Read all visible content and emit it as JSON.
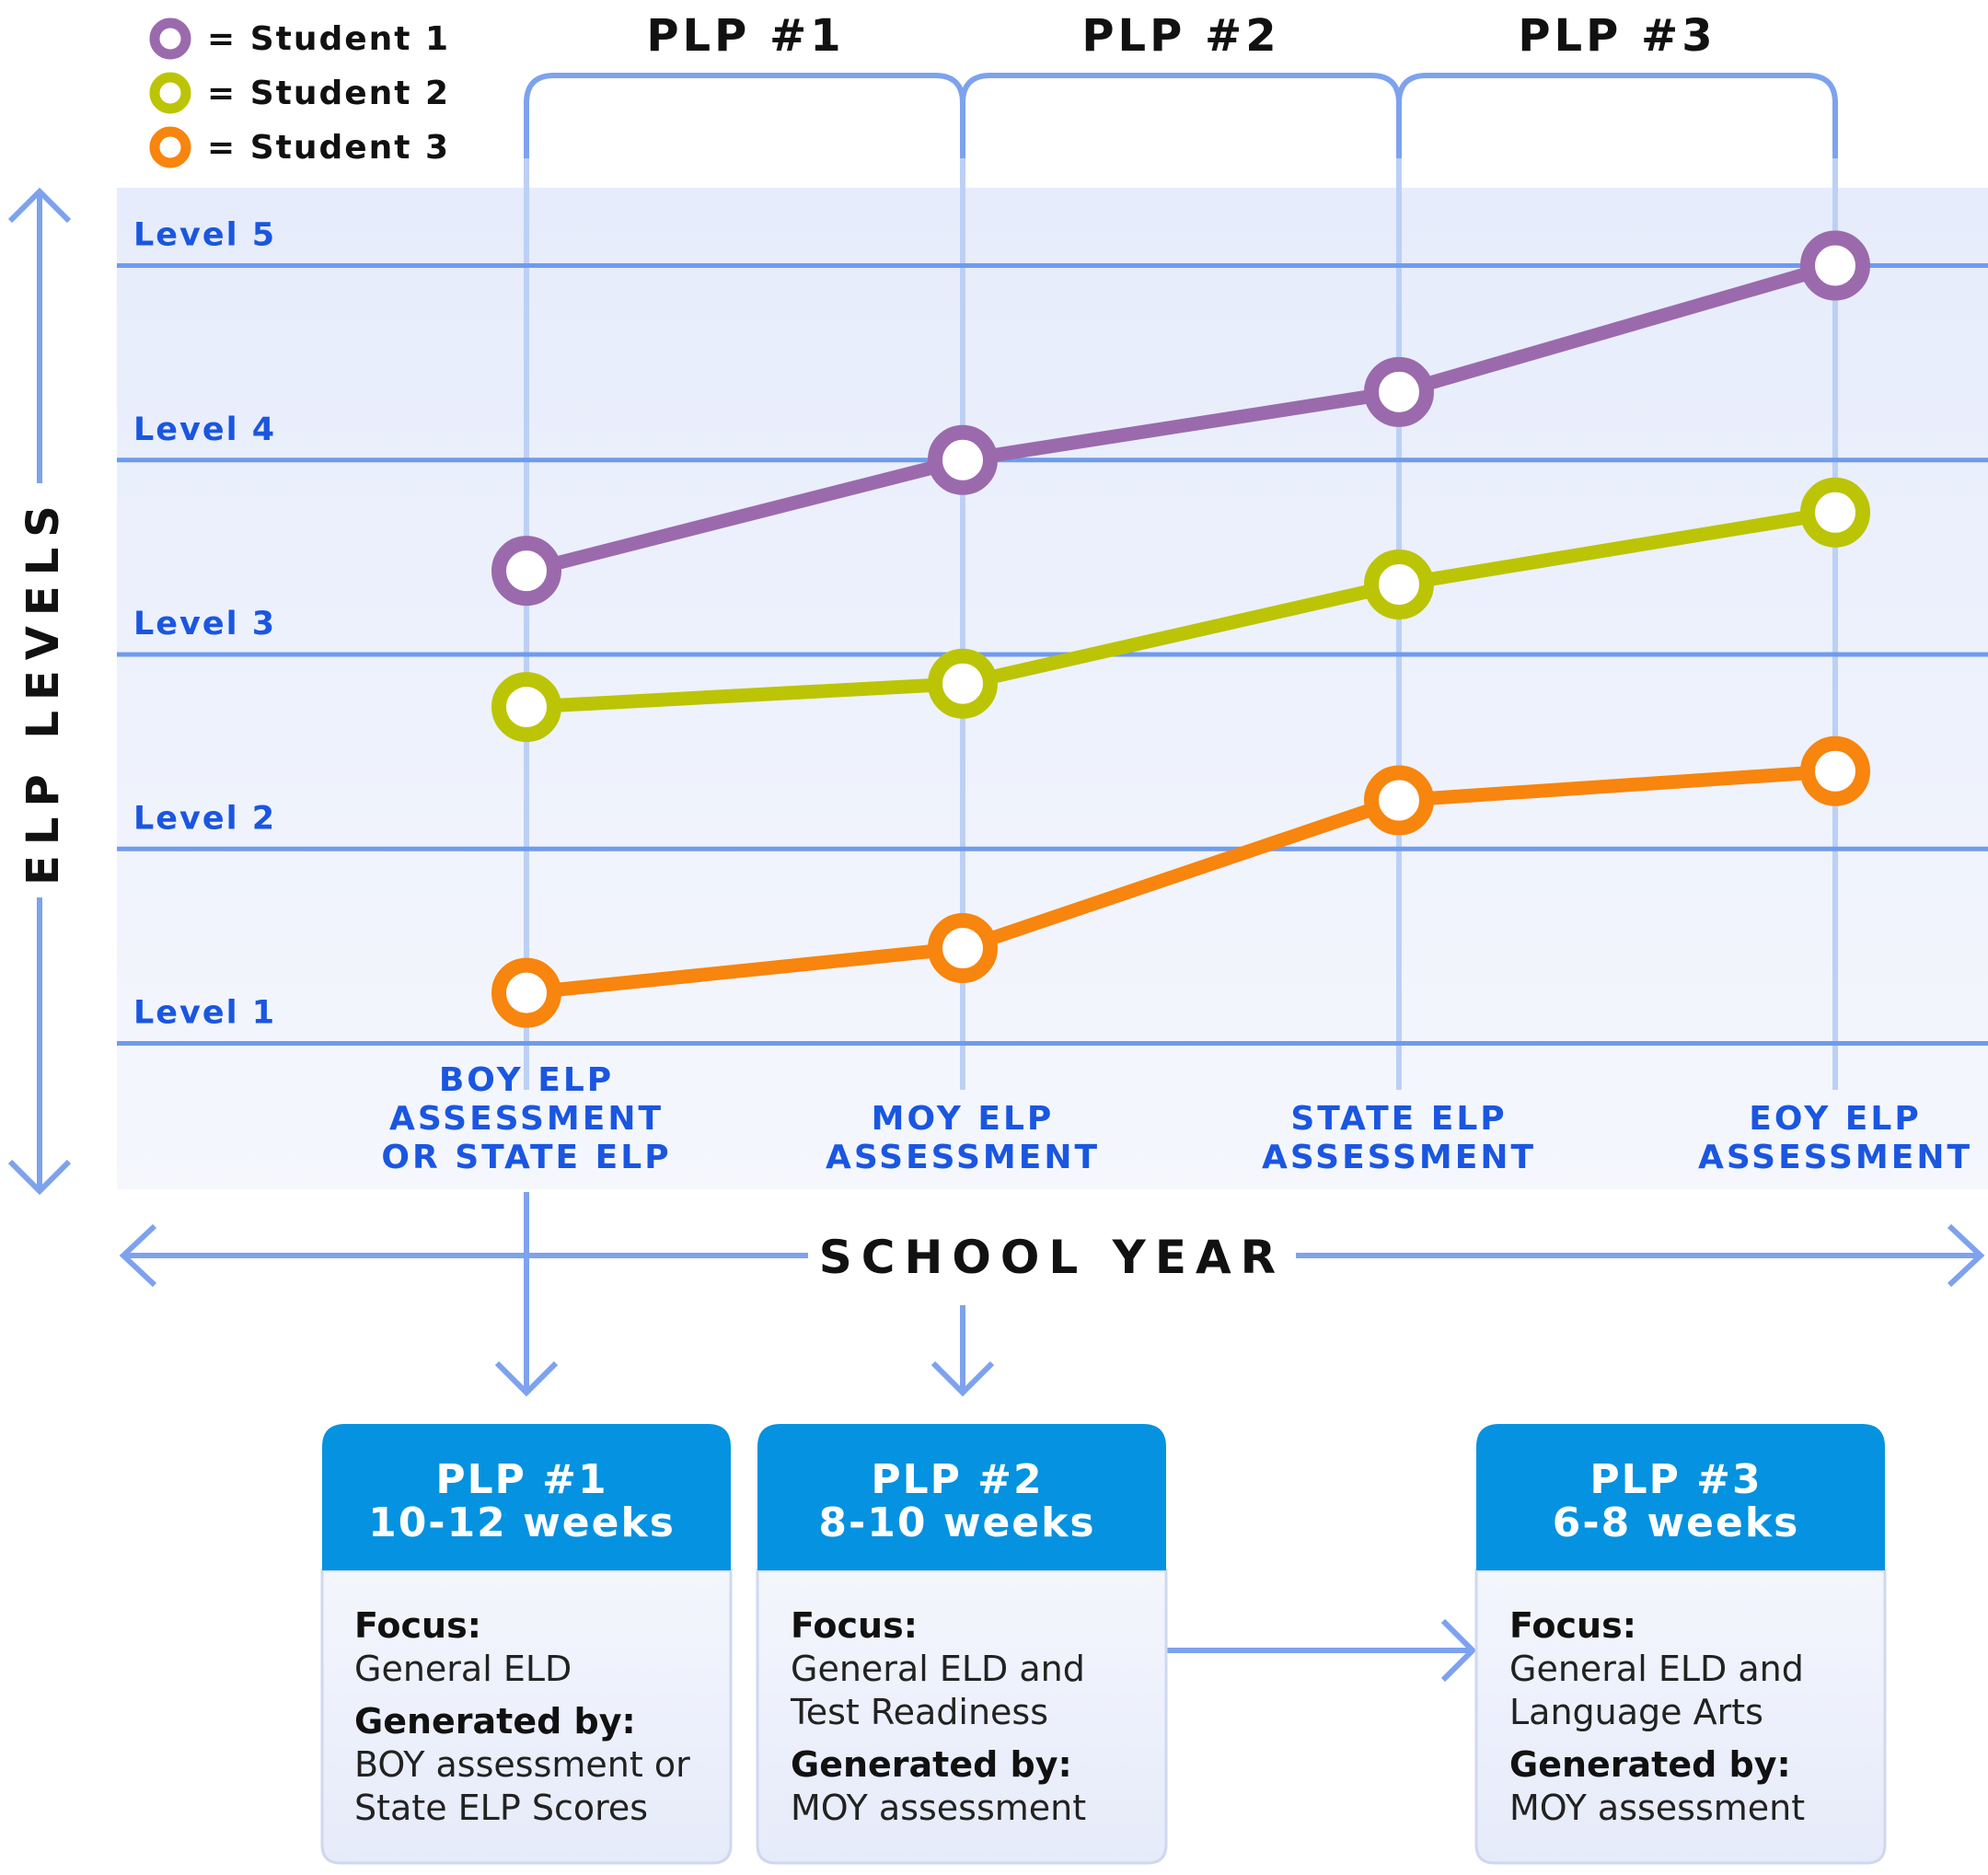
{
  "colors": {
    "student_1": "#9b6aad",
    "student_2": "#bcc406",
    "student_3": "#f7850e",
    "grid": "#6f9bee",
    "label_blue": "#1a56e0",
    "header_blue": "#0592e0",
    "plot_bg_top": "#e6ecfb",
    "plot_bg_bottom": "#f5f7fd"
  },
  "legend": [
    {
      "marker": "circle",
      "label": "= Student 1"
    },
    {
      "marker": "circle",
      "label": "= Student 2"
    },
    {
      "marker": "circle",
      "label": "= Student 3"
    }
  ],
  "plp_headers": [
    "PLP #1",
    "PLP #2",
    "PLP #3"
  ],
  "y_axis_title": "ELP LEVELS",
  "x_axis_title": "SCHOOL YEAR",
  "chart_data": {
    "type": "line",
    "title": "",
    "xlabel": "SCHOOL YEAR",
    "ylabel": "ELP LEVELS",
    "ylim": [
      0.25,
      5.4
    ],
    "y_ticks": [
      "Level 1",
      "Level 2",
      "Level 3",
      "Level 4",
      "Level 5"
    ],
    "y_tick_values": [
      1,
      2,
      3,
      4,
      5
    ],
    "categories": [
      [
        "BOY ELP",
        "ASSESSMENT",
        "OR STATE ELP"
      ],
      [
        "MOY ELP",
        "ASSESSMENT"
      ],
      [
        "STATE ELP",
        "ASSESSMENT"
      ],
      [
        "EOY ELP",
        "ASSESSMENT"
      ]
    ],
    "series": [
      {
        "name": "Student 1",
        "values": [
          3.43,
          4.0,
          4.35,
          5.0
        ]
      },
      {
        "name": "Student 2",
        "values": [
          2.73,
          2.85,
          3.36,
          3.73
        ]
      },
      {
        "name": "Student 3",
        "values": [
          1.26,
          1.49,
          2.25,
          2.4
        ]
      }
    ],
    "grid": true,
    "legend_position": "top-left"
  },
  "plp_cards": [
    {
      "title": "PLP #1",
      "duration": "10-12 weeks",
      "focus_label": "Focus:",
      "focus": [
        "General ELD"
      ],
      "generated_label": "Generated by:",
      "generated": [
        "BOY assessment or",
        "State ELP Scores"
      ]
    },
    {
      "title": "PLP #2",
      "duration": "8-10 weeks",
      "focus_label": "Focus:",
      "focus": [
        "General ELD and",
        "Test Readiness"
      ],
      "generated_label": "Generated by:",
      "generated": [
        "MOY assessment"
      ]
    },
    {
      "title": "PLP #3",
      "duration": "6-8 weeks",
      "focus_label": "Focus:",
      "focus": [
        "General ELD and",
        "Language Arts"
      ],
      "generated_label": "Generated by:",
      "generated": [
        "MOY assessment"
      ]
    }
  ]
}
